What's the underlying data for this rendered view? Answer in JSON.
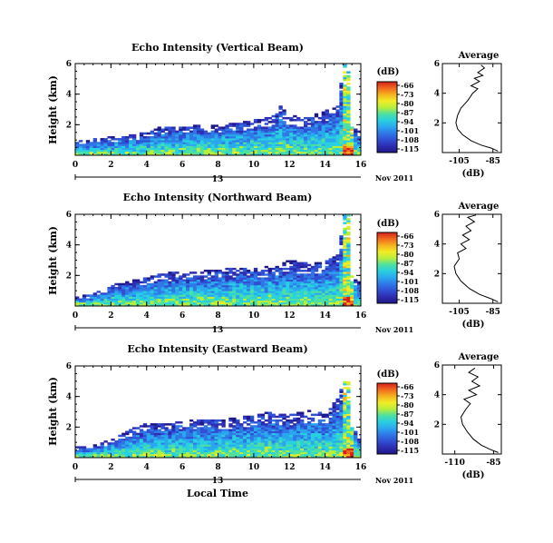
{
  "colorbar": {
    "unit": "(dB)",
    "labels": [
      "-66",
      "-73",
      "-80",
      "-87",
      "-94",
      "-101",
      "-108",
      "-115"
    ],
    "colors": [
      "#d62020",
      "#f06a1c",
      "#f5b21e",
      "#f2ec28",
      "#b8ee3a",
      "#4ee0a0",
      "#28d0e0",
      "#2aa8ee",
      "#2f78e6",
      "#3050d4",
      "#2e2cb0",
      "#1e1888"
    ]
  },
  "time_axis": {
    "xlabel": "Local Time",
    "day_label": "13",
    "month_label": "Nov 2011",
    "ticks": [
      "0",
      "2",
      "4",
      "6",
      "8",
      "10",
      "12",
      "14",
      "16"
    ]
  },
  "avg_title": "Average",
  "avg_xlabel": "(dB)",
  "chart_data": [
    {
      "type": "heatmap",
      "title": "Echo Intensity (Vertical Beam)",
      "xlabel": "Local Time",
      "ylabel": "Height (km)",
      "x_ticks": [
        0,
        2,
        4,
        6,
        8,
        10,
        12,
        14,
        16
      ],
      "y_ticks": [
        "2",
        "4",
        "6"
      ],
      "xlim": [
        0,
        16
      ],
      "ylim": [
        0,
        6
      ],
      "zlim": [
        -115,
        -66
      ],
      "echo_top_km": [
        [
          0,
          1.0
        ],
        [
          1,
          1.1
        ],
        [
          2,
          1.2
        ],
        [
          3,
          1.3
        ],
        [
          4,
          1.5
        ],
        [
          4.5,
          1.8
        ],
        [
          5,
          1.9
        ],
        [
          6,
          1.9
        ],
        [
          7,
          2.0
        ],
        [
          8,
          2.0
        ],
        [
          9,
          2.1
        ],
        [
          10,
          2.3
        ],
        [
          11,
          2.5
        ],
        [
          11.5,
          3.2
        ],
        [
          12,
          2.6
        ],
        [
          13,
          2.5
        ],
        [
          14,
          2.9
        ],
        [
          14.8,
          3.5
        ],
        [
          15,
          6.0
        ],
        [
          15.3,
          6.0
        ],
        [
          15.5,
          2.0
        ],
        [
          16,
          1.5
        ]
      ]
    },
    {
      "type": "heatmap",
      "title": "Echo Intensity (Northward Beam)",
      "xlabel": "Local Time",
      "ylabel": "Height (km)",
      "x_ticks": [
        0,
        2,
        4,
        6,
        8,
        10,
        12,
        14,
        16
      ],
      "y_ticks": [
        "2",
        "4",
        "6"
      ],
      "xlim": [
        0,
        16
      ],
      "ylim": [
        0,
        6
      ],
      "zlim": [
        -115,
        -66
      ],
      "echo_top_km": [
        [
          0,
          0.6
        ],
        [
          1,
          0.8
        ],
        [
          2,
          1.4
        ],
        [
          3,
          1.6
        ],
        [
          4,
          1.9
        ],
        [
          5,
          2.2
        ],
        [
          6,
          2.3
        ],
        [
          7,
          2.3
        ],
        [
          8,
          2.4
        ],
        [
          9,
          2.5
        ],
        [
          10,
          2.5
        ],
        [
          11,
          2.6
        ],
        [
          12,
          3.0
        ],
        [
          13,
          2.8
        ],
        [
          14,
          2.9
        ],
        [
          14.8,
          3.5
        ],
        [
          15,
          6.0
        ],
        [
          15.3,
          6.0
        ],
        [
          15.5,
          2.0
        ],
        [
          16,
          1.5
        ]
      ]
    },
    {
      "type": "heatmap",
      "title": "Echo Intensity (Eastward Beam)",
      "xlabel": "Local Time",
      "ylabel": "Height (km)",
      "x_ticks": [
        0,
        2,
        4,
        6,
        8,
        10,
        12,
        14,
        16
      ],
      "y_ticks": [
        "2",
        "4",
        "6"
      ],
      "xlim": [
        0,
        16
      ],
      "ylim": [
        0,
        6
      ],
      "zlim": [
        -115,
        -66
      ],
      "echo_top_km": [
        [
          0,
          0.7
        ],
        [
          1,
          0.8
        ],
        [
          2,
          1.2
        ],
        [
          3,
          1.8
        ],
        [
          4,
          2.3
        ],
        [
          5,
          2.3
        ],
        [
          6,
          2.4
        ],
        [
          7,
          2.5
        ],
        [
          8,
          2.5
        ],
        [
          9,
          2.6
        ],
        [
          10,
          2.8
        ],
        [
          11,
          3.0
        ],
        [
          12,
          2.8
        ],
        [
          13,
          3.1
        ],
        [
          14,
          2.9
        ],
        [
          14.8,
          4.0
        ],
        [
          15,
          5.0
        ],
        [
          15.3,
          5.0
        ],
        [
          15.5,
          2.0
        ],
        [
          16,
          1.5
        ]
      ]
    },
    {
      "type": "line",
      "title": "Average",
      "xlabel": "(dB)",
      "x_tick_labels": [
        "-105",
        "-85"
      ],
      "y_ticks": [
        "2",
        "4",
        "6"
      ],
      "xlim": [
        -115,
        -80
      ],
      "ylim": [
        0,
        6
      ],
      "points": [
        [
          -82,
          0.1
        ],
        [
          -86,
          0.3
        ],
        [
          -92,
          0.5
        ],
        [
          -98,
          0.8
        ],
        [
          -103,
          1.2
        ],
        [
          -106,
          1.6
        ],
        [
          -107,
          2.0
        ],
        [
          -106,
          2.5
        ],
        [
          -104,
          3.0
        ],
        [
          -100,
          3.5
        ],
        [
          -97,
          4.0
        ],
        [
          -94,
          4.3
        ],
        [
          -98,
          4.5
        ],
        [
          -93,
          4.8
        ],
        [
          -96,
          5.0
        ],
        [
          -91,
          5.2
        ],
        [
          -94,
          5.4
        ],
        [
          -90,
          5.7
        ],
        [
          -92,
          5.9
        ]
      ]
    },
    {
      "type": "line",
      "title": "Average",
      "xlabel": "(dB)",
      "x_tick_labels": [
        "-105",
        "-85"
      ],
      "y_ticks": [
        "2",
        "4",
        "6"
      ],
      "xlim": [
        -115,
        -80
      ],
      "ylim": [
        0,
        6
      ],
      "points": [
        [
          -82,
          0.1
        ],
        [
          -86,
          0.3
        ],
        [
          -93,
          0.6
        ],
        [
          -99,
          1.0
        ],
        [
          -104,
          1.5
        ],
        [
          -107,
          2.0
        ],
        [
          -108,
          2.5
        ],
        [
          -105,
          3.0
        ],
        [
          -106,
          3.4
        ],
        [
          -101,
          3.7
        ],
        [
          -104,
          4.0
        ],
        [
          -99,
          4.3
        ],
        [
          -103,
          4.6
        ],
        [
          -98,
          4.9
        ],
        [
          -101,
          5.2
        ],
        [
          -96,
          5.5
        ],
        [
          -100,
          5.8
        ],
        [
          -95,
          5.95
        ]
      ]
    },
    {
      "type": "line",
      "title": "Average",
      "xlabel": "(dB)",
      "x_tick_labels": [
        "-110",
        "-85"
      ],
      "y_ticks": [
        "2",
        "4",
        "6"
      ],
      "xlim": [
        -118,
        -80
      ],
      "ylim": [
        0,
        6
      ],
      "points": [
        [
          -82,
          0.1
        ],
        [
          -87,
          0.3
        ],
        [
          -93,
          0.6
        ],
        [
          -98,
          1.0
        ],
        [
          -102,
          1.5
        ],
        [
          -105,
          2.0
        ],
        [
          -106,
          2.5
        ],
        [
          -103,
          3.0
        ],
        [
          -100,
          3.4
        ],
        [
          -104,
          3.7
        ],
        [
          -96,
          4.0
        ],
        [
          -101,
          4.3
        ],
        [
          -94,
          4.6
        ],
        [
          -99,
          4.9
        ],
        [
          -95,
          5.2
        ],
        [
          -101,
          5.5
        ],
        [
          -97,
          5.8
        ]
      ]
    }
  ]
}
